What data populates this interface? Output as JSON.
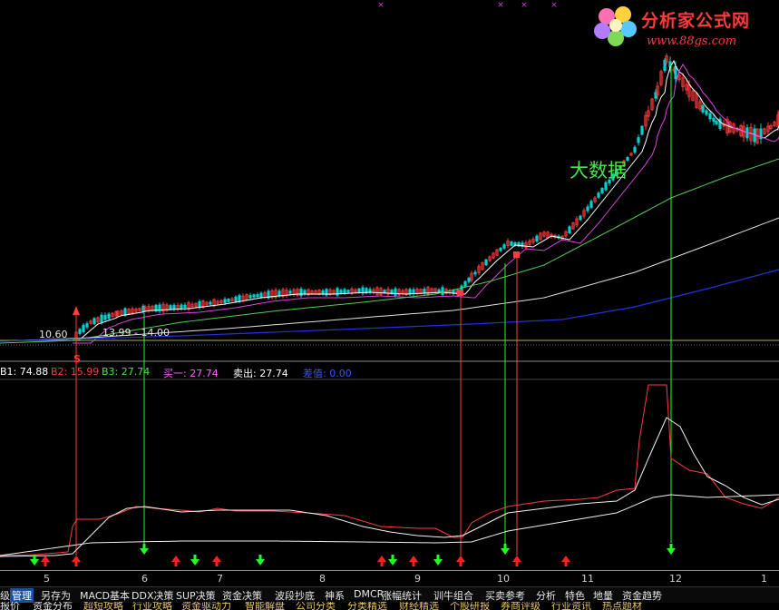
{
  "logo": {
    "brand": "分析家公式网",
    "url": "www.88gs.com"
  },
  "chart": {
    "watermark": "大数据",
    "price_marker": "10.60",
    "range_text": "13.99 - 14.00",
    "signal_letter": "S"
  },
  "info_bar": {
    "b1": "B1: 74.88",
    "b2": "B2: 15.99",
    "b3": "B3: 27.74",
    "buy1": "买一: 27.74",
    "sell": "卖出: 27.74",
    "diff": "差值: 0.00",
    "colors": {
      "b1": "#ffffff",
      "b2": "#ff3b3b",
      "b3": "#4de04d",
      "buy1": "#ff66ff",
      "sell": "#ffffff",
      "diff": "#3355ff"
    }
  },
  "x_axis": {
    "ticks": [
      "5",
      "6",
      "7",
      "8",
      "9",
      "10",
      "11",
      "12",
      "1"
    ]
  },
  "tabs_row1": [
    "管理",
    "另存为",
    "MACD基本",
    "DDX决策",
    "SUP决策",
    "资金决策",
    "波段抄底",
    "神系",
    "DMCR",
    "涨幅统计",
    "训牛组合",
    "买卖参考",
    "分析",
    "特色",
    "地量",
    "资金趋势"
  ],
  "tabs_row1_prefix": "级",
  "tabs_row2": [
    "报价",
    "资金分布",
    "超短攻略",
    "行业攻略",
    "资金驱动力",
    "智能解盘",
    "公司分类",
    "分类精选",
    "财经精选",
    "个股研报",
    "券商评级",
    "行业资讯",
    "热点题材"
  ],
  "colors": {
    "up": "#ff3b3b",
    "down": "#00d0d0",
    "ma_white": "#ffffff",
    "ma_magenta": "#dd44dd",
    "ma_green": "#55cc55",
    "ma_blue": "#2233dd",
    "signal_green": "#22ff22",
    "signal_red": "#ff2020"
  }
}
